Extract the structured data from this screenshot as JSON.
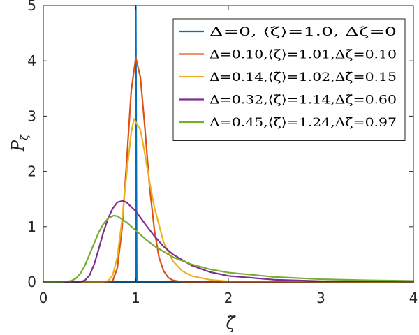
{
  "chart_data": {
    "type": "line",
    "xlabel": "ζ̃",
    "ylabel": "P",
    "ylabel_sub": "ζ̃",
    "xlim": [
      0,
      4
    ],
    "ylim": [
      0,
      5
    ],
    "xticks": [
      "0",
      "1",
      "2",
      "3",
      "4"
    ],
    "yticks": [
      "0",
      "1",
      "2",
      "3",
      "4",
      "5"
    ],
    "grid": false,
    "legend_position": "top-right",
    "series": [
      {
        "name": "Δ=0,    ⟨ζ̃⟩=1.0,  Δζ̃=0",
        "color": "#0072BD",
        "x": [
          0,
          0.99,
          1.0,
          1.0,
          1.01,
          4
        ],
        "y": [
          0,
          0,
          0,
          5,
          0,
          0
        ]
      },
      {
        "name": "Δ=0.10,⟨ζ̃⟩=1.01,Δζ̃=0.10",
        "color": "#D95319",
        "x": [
          0,
          0.7,
          0.75,
          0.8,
          0.85,
          0.9,
          0.95,
          1.0,
          1.05,
          1.1,
          1.15,
          1.2,
          1.25,
          1.3,
          1.35,
          1.4,
          1.5,
          4
        ],
        "y": [
          0,
          0,
          0.02,
          0.25,
          0.95,
          2.15,
          3.45,
          4.06,
          3.7,
          2.75,
          1.7,
          0.95,
          0.45,
          0.2,
          0.08,
          0.03,
          0,
          0
        ]
      },
      {
        "name": "Δ=0.14,⟨ζ̃⟩=1.02,Δζ̃=0.15",
        "color": "#EDB120",
        "x": [
          0,
          0.65,
          0.7,
          0.75,
          0.8,
          0.85,
          0.9,
          0.95,
          0.98,
          1.05,
          1.1,
          1.15,
          1.2,
          1.3,
          1.4,
          1.5,
          1.6,
          1.8,
          2.0,
          4
        ],
        "y": [
          0,
          0,
          0.02,
          0.12,
          0.45,
          1.1,
          1.95,
          2.7,
          2.95,
          2.75,
          2.3,
          1.8,
          1.35,
          0.72,
          0.38,
          0.2,
          0.11,
          0.04,
          0.01,
          0
        ]
      },
      {
        "name": "Δ=0.32,⟨ζ̃⟩=1.14,Δζ̃=0.60",
        "color": "#7E2F8E",
        "x": [
          0,
          0.4,
          0.45,
          0.5,
          0.55,
          0.6,
          0.65,
          0.7,
          0.75,
          0.8,
          0.86,
          0.9,
          1.0,
          1.1,
          1.2,
          1.3,
          1.4,
          1.6,
          1.8,
          2.0,
          2.5,
          3.0,
          4.0
        ],
        "y": [
          0,
          0,
          0.03,
          0.12,
          0.32,
          0.6,
          0.9,
          1.15,
          1.33,
          1.44,
          1.47,
          1.44,
          1.28,
          1.05,
          0.83,
          0.64,
          0.5,
          0.3,
          0.18,
          0.11,
          0.04,
          0.015,
          0.005
        ]
      },
      {
        "name": "Δ=0.45,⟨ζ̃⟩=1.24,Δζ̃=0.97",
        "color": "#77AC30",
        "x": [
          0,
          0.2,
          0.3,
          0.35,
          0.4,
          0.45,
          0.5,
          0.55,
          0.6,
          0.65,
          0.7,
          0.76,
          0.8,
          0.9,
          1.0,
          1.1,
          1.2,
          1.4,
          1.6,
          1.8,
          2.0,
          2.5,
          3.0,
          3.5,
          4.0
        ],
        "y": [
          0,
          0,
          0.02,
          0.06,
          0.15,
          0.3,
          0.5,
          0.7,
          0.9,
          1.05,
          1.15,
          1.2,
          1.19,
          1.08,
          0.93,
          0.78,
          0.65,
          0.45,
          0.32,
          0.23,
          0.17,
          0.09,
          0.05,
          0.03,
          0.02
        ]
      }
    ]
  }
}
